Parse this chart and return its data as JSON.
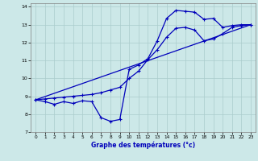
{
  "xlabel": "Graphe des températures (°c)",
  "background_color": "#cce8e8",
  "grid_color": "#aacccc",
  "line_color": "#0000bb",
  "xlim": [
    -0.5,
    23.5
  ],
  "ylim": [
    7,
    14.2
  ],
  "xticks": [
    0,
    1,
    2,
    3,
    4,
    5,
    6,
    7,
    8,
    9,
    10,
    11,
    12,
    13,
    14,
    15,
    16,
    17,
    18,
    19,
    20,
    21,
    22,
    23
  ],
  "yticks": [
    7,
    8,
    9,
    10,
    11,
    12,
    13,
    14
  ],
  "series1_x": [
    0,
    1,
    2,
    3,
    4,
    5,
    6,
    7,
    8,
    9,
    10,
    11,
    12,
    13,
    14,
    15,
    16,
    17,
    18,
    19,
    20,
    21,
    22,
    23
  ],
  "series1_y": [
    8.8,
    8.7,
    8.55,
    8.7,
    8.6,
    8.75,
    8.7,
    7.8,
    7.6,
    7.7,
    10.5,
    10.75,
    11.1,
    12.1,
    13.35,
    13.8,
    13.75,
    13.7,
    13.3,
    13.35,
    12.85,
    12.95,
    13.0,
    13.0
  ],
  "series2_x": [
    0,
    1,
    2,
    3,
    4,
    5,
    6,
    7,
    8,
    9,
    10,
    11,
    12,
    13,
    14,
    15,
    16,
    17,
    18,
    19,
    20,
    21,
    22,
    23
  ],
  "series2_y": [
    8.8,
    8.85,
    8.9,
    8.95,
    9.0,
    9.05,
    9.1,
    9.2,
    9.35,
    9.5,
    10.0,
    10.4,
    11.05,
    11.6,
    12.3,
    12.8,
    12.85,
    12.7,
    12.1,
    12.2,
    12.5,
    12.85,
    12.95,
    13.0
  ],
  "series3_x": [
    0,
    23
  ],
  "series3_y": [
    8.8,
    13.0
  ]
}
